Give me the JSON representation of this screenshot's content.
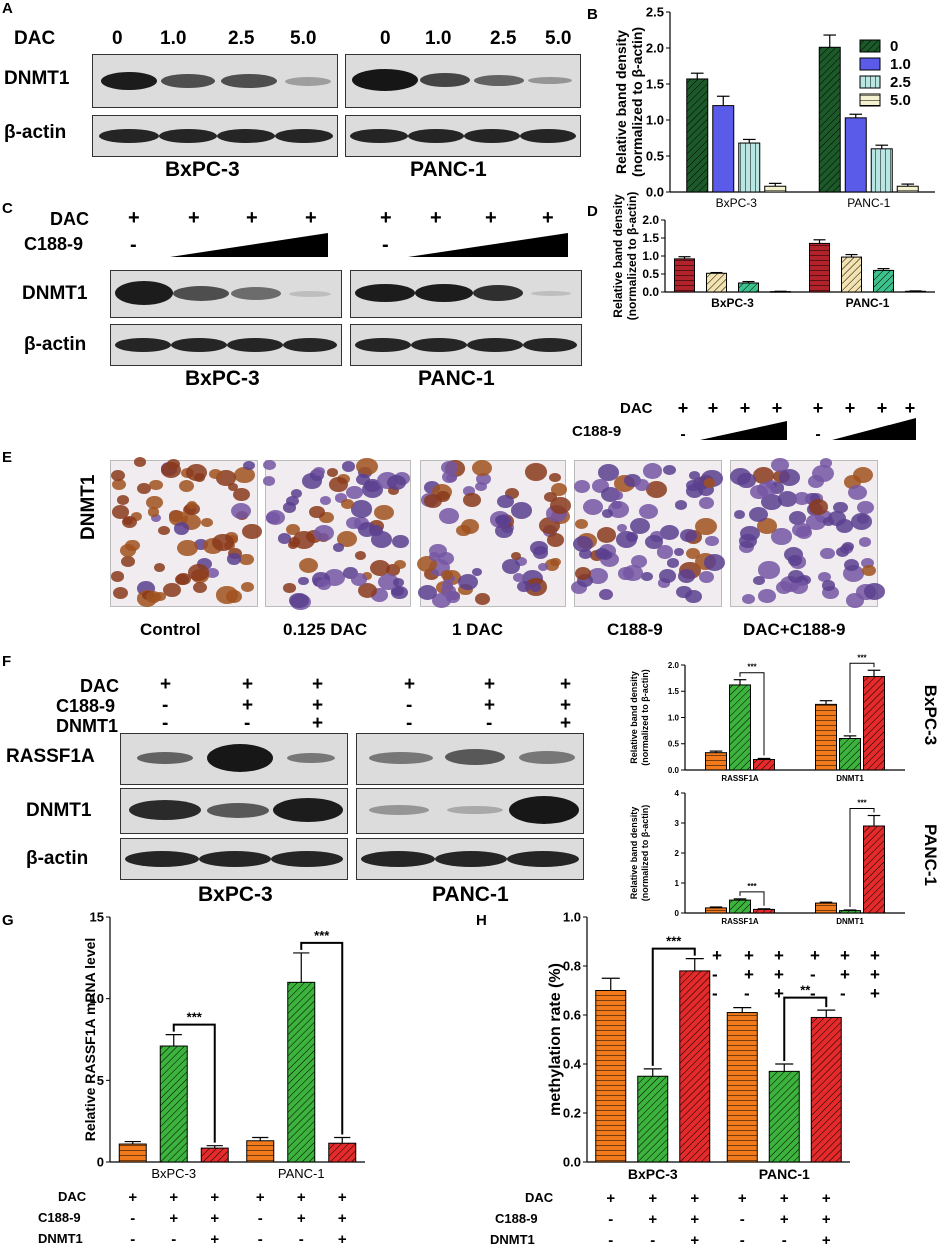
{
  "panels": {
    "A": "A",
    "B": "B",
    "C": "C",
    "D": "D",
    "E": "E",
    "F": "F",
    "G": "G",
    "H": "H"
  },
  "labels": {
    "dac": "DAC",
    "c188": "C188-9",
    "dnmt1": "DNMT1",
    "bactin": "β-actin",
    "rassf1a": "RASSF1A",
    "bxpc3": "BxPC-3",
    "panc1": "PANC-1",
    "plus": "+",
    "minus": "-"
  },
  "panelA": {
    "doses": [
      "0",
      "1.0",
      "2.5",
      "5.0"
    ],
    "dnmt1_bxpc3": [
      1.0,
      0.7,
      0.65,
      0.25
    ],
    "dnmt1_panc1": [
      1.0,
      0.75,
      0.6,
      0.3
    ]
  },
  "panelC": {
    "dac": [
      "+",
      "+",
      "+",
      "+"
    ],
    "c188": [
      "-"
    ],
    "dnmt1_bxpc3": [
      1.0,
      0.7,
      0.55,
      0.1
    ],
    "dnmt1_panc1": [
      1.0,
      0.95,
      0.85,
      0.1
    ]
  },
  "panelE": {
    "rowlabel": "DNMT1",
    "conditions": [
      "Control",
      "0.125 DAC",
      "1 DAC",
      "C188-9",
      "DAC+C188-9"
    ],
    "brown_level": [
      0.85,
      0.35,
      0.45,
      0.2,
      0.05
    ]
  },
  "panelF": {
    "dac": [
      "+",
      "+",
      "+"
    ],
    "c188": [
      "-",
      "+",
      "+"
    ],
    "dnmt1": [
      "-",
      "-",
      "+"
    ],
    "rassf1a_bxpc3": [
      0.35,
      1.0,
      0.3
    ],
    "rassf1a_panc1": [
      0.3,
      0.5,
      0.35
    ],
    "dnmt1_bxpc3": [
      0.85,
      0.6,
      0.95
    ],
    "dnmt1_panc1": [
      0.25,
      0.2,
      1.0
    ]
  },
  "chart_data": [
    {
      "panel": "B",
      "type": "bar",
      "categories": [
        "BxPC-3",
        "PANC-1"
      ],
      "ylabel": "Relative band density\n(normalized to β-actin)",
      "ylim": [
        0,
        2.5
      ],
      "yticks": [
        "0.0",
        "0.5",
        "1.0",
        "1.5",
        "2.0",
        "2.5"
      ],
      "legend": "top-right",
      "series": [
        {
          "name": "0",
          "color": "#1d5a2a",
          "values": [
            1.57,
            2.01
          ],
          "errors": [
            0.08,
            0.17
          ]
        },
        {
          "name": "1.0",
          "color": "#5b5bea",
          "values": [
            1.2,
            1.03
          ],
          "errors": [
            0.13,
            0.05
          ]
        },
        {
          "name": "2.5",
          "color": "#b7e6e3",
          "values": [
            0.68,
            0.6
          ],
          "errors": [
            0.05,
            0.05
          ]
        },
        {
          "name": "5.0",
          "color": "#f4f1cf",
          "values": [
            0.08,
            0.08
          ],
          "errors": [
            0.04,
            0.03
          ]
        }
      ]
    },
    {
      "panel": "D",
      "type": "bar",
      "categories": [
        "BxPC-3",
        "PANC-1"
      ],
      "ylabel": "Relative band density\n(normalized to β-actin)",
      "ylim": [
        0,
        2.0
      ],
      "yticks": [
        "0.0",
        "0.5",
        "1.0",
        "1.5",
        "2.0"
      ],
      "series": [
        {
          "color": "#b2222a",
          "values": [
            0.92,
            1.35
          ],
          "errors": [
            0.06,
            0.1
          ]
        },
        {
          "color": "#f2e3b0",
          "values": [
            0.52,
            0.97
          ],
          "errors": [
            0.02,
            0.07
          ]
        },
        {
          "color": "#3cc28c",
          "values": [
            0.25,
            0.6
          ],
          "errors": [
            0.04,
            0.05
          ]
        },
        {
          "color": "#ffffff",
          "values": [
            0.01,
            0.02
          ],
          "errors": [
            0.01,
            0.01
          ]
        }
      ]
    },
    {
      "panel": "F-BxPC-3",
      "type": "bar",
      "categories": [
        "RASSF1A",
        "DNMT1"
      ],
      "ylabel": "Relative band density\n(normalized to β-actin)",
      "ylim": [
        0,
        2.0
      ],
      "yticks": [
        "0.0",
        "0.5",
        "1.0",
        "1.5",
        "2.0"
      ],
      "rowlabel": "BxPC-3",
      "sig": [
        "***",
        "***"
      ],
      "series": [
        {
          "color": "#f07a1c",
          "values": [
            0.33,
            1.25
          ],
          "errors": [
            0.03,
            0.07
          ]
        },
        {
          "color": "#3cb33c",
          "values": [
            1.62,
            0.6
          ],
          "errors": [
            0.1,
            0.05
          ]
        },
        {
          "color": "#e42a2a",
          "values": [
            0.2,
            1.78
          ],
          "errors": [
            0.02,
            0.12
          ]
        }
      ]
    },
    {
      "panel": "F-PANC-1",
      "type": "bar",
      "categories": [
        "RASSF1A",
        "DNMT1"
      ],
      "ylabel": "Relative band density\n(normalized to β-actin)",
      "ylim": [
        0,
        4
      ],
      "yticks": [
        "0",
        "1",
        "2",
        "3",
        "4"
      ],
      "rowlabel": "PANC-1",
      "sig": [
        "***",
        "***"
      ],
      "series": [
        {
          "color": "#f07a1c",
          "values": [
            0.17,
            0.33
          ],
          "errors": [
            0.03,
            0.03
          ]
        },
        {
          "color": "#3cb33c",
          "values": [
            0.43,
            0.08
          ],
          "errors": [
            0.04,
            0.02
          ]
        },
        {
          "color": "#e42a2a",
          "values": [
            0.12,
            2.9
          ],
          "errors": [
            0.02,
            0.35
          ]
        }
      ]
    },
    {
      "panel": "G",
      "type": "bar",
      "categories": [
        "BxPC-3",
        "PANC-1"
      ],
      "ylabel": "Relative RASSF1A mRNA level",
      "ylim": [
        0,
        15
      ],
      "yticks": [
        "0",
        "5",
        "10",
        "15"
      ],
      "sig": [
        "***",
        "***"
      ],
      "series": [
        {
          "color": "#f07a1c",
          "values": [
            1.1,
            1.3
          ],
          "errors": [
            0.15,
            0.2
          ]
        },
        {
          "color": "#3cb33c",
          "values": [
            7.1,
            11.0
          ],
          "errors": [
            0.7,
            1.8
          ]
        },
        {
          "color": "#e42a2a",
          "values": [
            0.85,
            1.15
          ],
          "errors": [
            0.15,
            0.35
          ]
        }
      ]
    },
    {
      "panel": "H",
      "type": "bar",
      "categories": [
        "BxPC-3",
        "PANC-1"
      ],
      "ylabel": "methylation rate (%)",
      "ylim": [
        0,
        1.0
      ],
      "yticks": [
        "0.0",
        "0.2",
        "0.4",
        "0.6",
        "0.8",
        "1.0"
      ],
      "sig": [
        "***",
        "**"
      ],
      "series": [
        {
          "color": "#f07a1c",
          "values": [
            0.7,
            0.61
          ],
          "errors": [
            0.05,
            0.02
          ]
        },
        {
          "color": "#3cb33c",
          "values": [
            0.35,
            0.37
          ],
          "errors": [
            0.03,
            0.03
          ]
        },
        {
          "color": "#e42a2a",
          "values": [
            0.78,
            0.59
          ],
          "errors": [
            0.05,
            0.03
          ]
        }
      ]
    }
  ]
}
